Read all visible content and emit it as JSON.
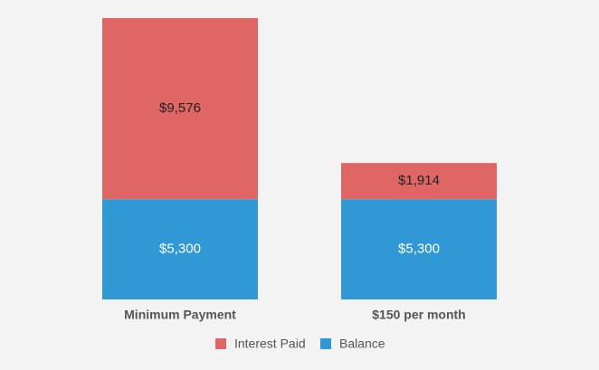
{
  "chart_data": {
    "type": "stacked_bar",
    "categories": [
      "Minimum Payment",
      "$150 per month"
    ],
    "series": [
      {
        "name": "Interest Paid",
        "color": "#e06666",
        "values": [
          9576,
          1914
        ],
        "value_labels": [
          "$9,576",
          "$1,914"
        ]
      },
      {
        "name": "Balance",
        "color": "#3198d6",
        "values": [
          5300,
          5300
        ],
        "value_labels": [
          "$5,300",
          "$5,300"
        ]
      }
    ],
    "legend": "bottom"
  }
}
